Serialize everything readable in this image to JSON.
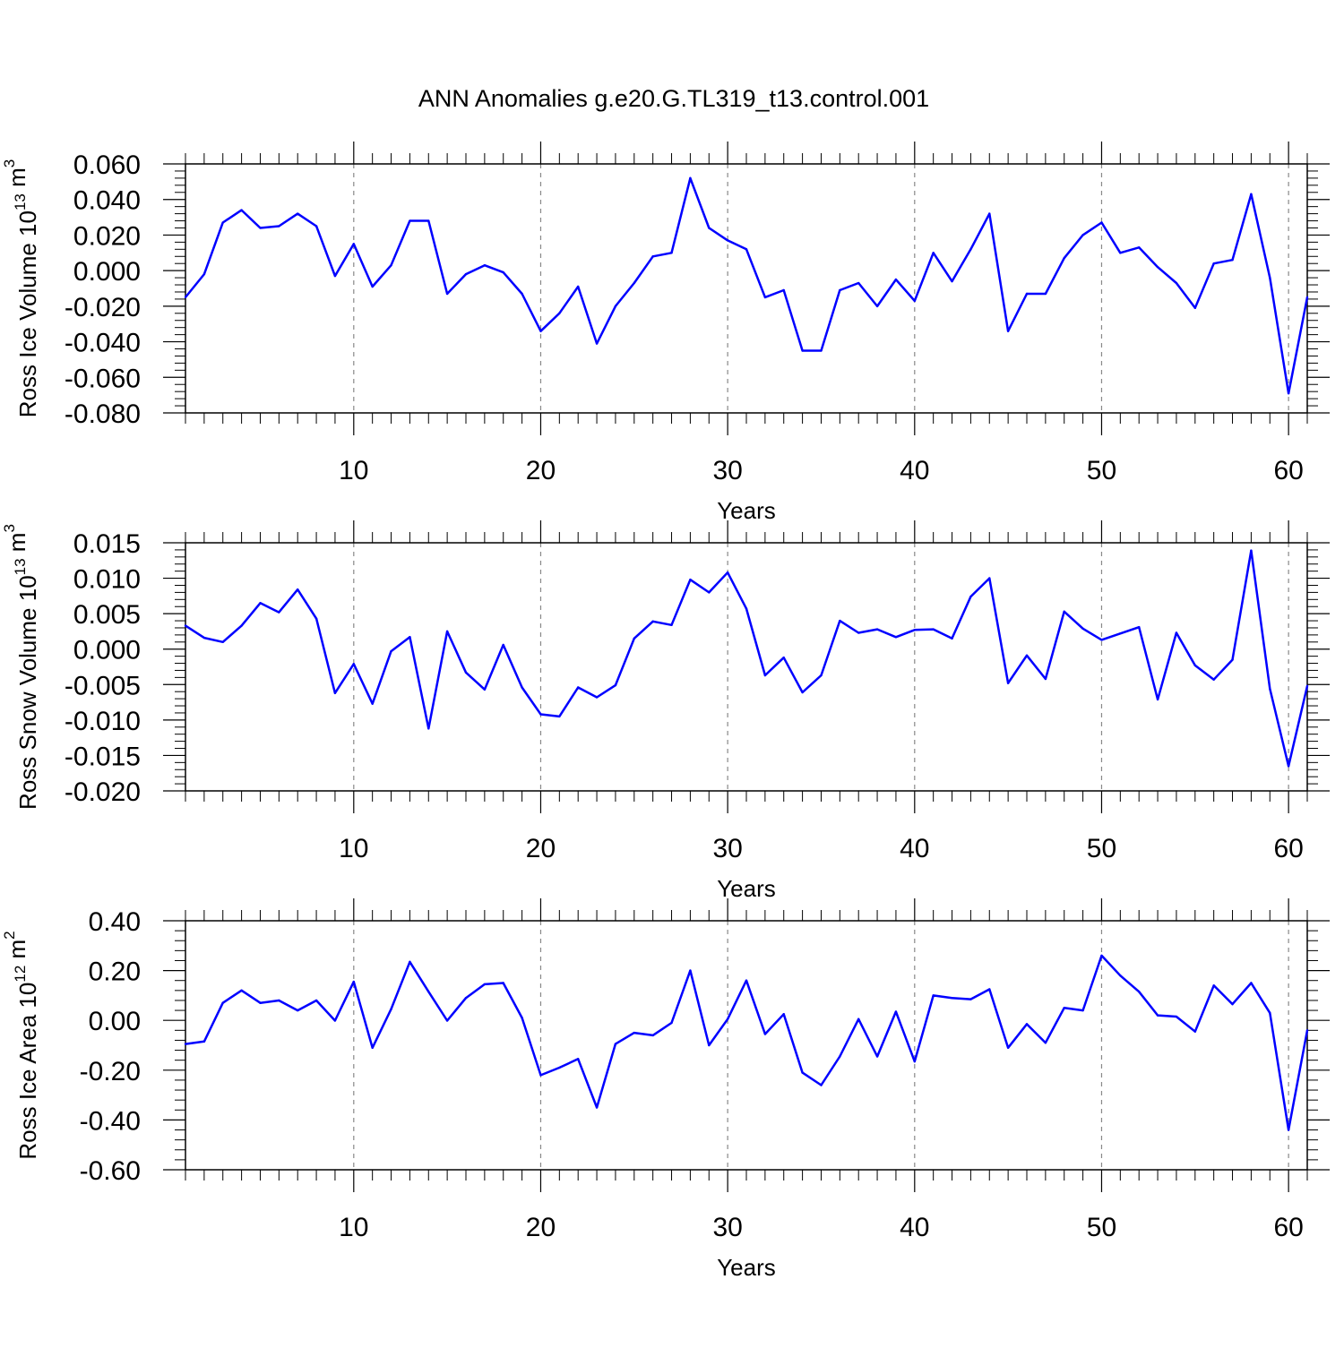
{
  "title": "ANN Anomalies g.e20.G.TL319_t13.control.001",
  "colors": {
    "line": "#0000ff",
    "axis": "#000000",
    "grid": "#888888"
  },
  "chart_data": [
    {
      "type": "line",
      "xlabel": "Years",
      "ylabel": {
        "text": "Ross Ice Volume 10",
        "sup": "13",
        "unit": " m",
        "unit_sup": "3"
      },
      "xlim": [
        1,
        61
      ],
      "ylim": [
        -0.08,
        0.06
      ],
      "x_ticks": [
        10,
        20,
        30,
        40,
        50,
        60
      ],
      "x_tick_labels": [
        "10",
        "20",
        "30",
        "40",
        "50",
        "60"
      ],
      "y_ticks": [
        -0.08,
        -0.06,
        -0.04,
        -0.02,
        0.0,
        0.02,
        0.04,
        0.06
      ],
      "y_tick_labels": [
        "-0.080",
        "-0.060",
        "-0.040",
        "-0.020",
        "0.000",
        "0.020",
        "0.040",
        "0.060"
      ],
      "x": [
        1,
        2,
        3,
        4,
        5,
        6,
        7,
        8,
        9,
        10,
        11,
        12,
        13,
        14,
        15,
        16,
        17,
        18,
        19,
        20,
        21,
        22,
        23,
        24,
        25,
        26,
        27,
        28,
        29,
        30,
        31,
        32,
        33,
        34,
        35,
        36,
        37,
        38,
        39,
        40,
        41,
        42,
        43,
        44,
        45,
        46,
        47,
        48,
        49,
        50,
        51,
        52,
        53,
        54,
        55,
        56,
        57,
        58,
        59,
        60,
        61
      ],
      "values": [
        -0.015,
        -0.002,
        0.027,
        0.034,
        0.024,
        0.025,
        0.032,
        0.025,
        -0.003,
        0.015,
        -0.009,
        0.003,
        0.028,
        0.028,
        -0.013,
        -0.002,
        0.003,
        -0.001,
        -0.013,
        -0.034,
        -0.024,
        -0.009,
        -0.041,
        -0.02,
        -0.007,
        0.008,
        0.01,
        0.052,
        0.024,
        0.017,
        0.012,
        -0.015,
        -0.011,
        -0.045,
        -0.045,
        -0.011,
        -0.007,
        -0.02,
        -0.005,
        -0.017,
        0.01,
        -0.006,
        0.012,
        0.032,
        -0.034,
        -0.013,
        -0.013,
        0.007,
        0.02,
        0.027,
        0.01,
        0.013,
        0.002,
        -0.007,
        -0.021,
        0.004,
        0.006,
        0.043,
        -0.004,
        -0.069,
        -0.015
      ]
    },
    {
      "type": "line",
      "xlabel": "Years",
      "ylabel": {
        "text": "Ross Snow Volume 10",
        "sup": "13",
        "unit": " m",
        "unit_sup": "3"
      },
      "xlim": [
        1,
        61
      ],
      "ylim": [
        -0.02,
        0.015
      ],
      "x_ticks": [
        10,
        20,
        30,
        40,
        50,
        60
      ],
      "x_tick_labels": [
        "10",
        "20",
        "30",
        "40",
        "50",
        "60"
      ],
      "y_ticks": [
        -0.02,
        -0.015,
        -0.01,
        -0.005,
        0.0,
        0.005,
        0.01,
        0.015
      ],
      "y_tick_labels": [
        "-0.020",
        "-0.015",
        "-0.010",
        "-0.005",
        "0.000",
        "0.005",
        "0.010",
        "0.015"
      ],
      "x": [
        1,
        2,
        3,
        4,
        5,
        6,
        7,
        8,
        9,
        10,
        11,
        12,
        13,
        14,
        15,
        16,
        17,
        18,
        19,
        20,
        21,
        22,
        23,
        24,
        25,
        26,
        27,
        28,
        29,
        30,
        31,
        32,
        33,
        34,
        35,
        36,
        37,
        38,
        39,
        40,
        41,
        42,
        43,
        44,
        45,
        46,
        47,
        48,
        49,
        50,
        51,
        52,
        53,
        54,
        55,
        56,
        57,
        58,
        59,
        60,
        61
      ],
      "values": [
        0.0033,
        0.0016,
        0.001,
        0.0033,
        0.0065,
        0.0052,
        0.0084,
        0.0043,
        -0.0062,
        -0.0021,
        -0.0077,
        -0.0003,
        0.0017,
        -0.0112,
        0.0025,
        -0.0033,
        -0.0057,
        0.0006,
        -0.0054,
        -0.0092,
        -0.0095,
        -0.0054,
        -0.0068,
        -0.0051,
        0.0015,
        0.0039,
        0.0034,
        0.0098,
        0.008,
        0.0108,
        0.0057,
        -0.0037,
        -0.0012,
        -0.0061,
        -0.0037,
        0.004,
        0.0023,
        0.0028,
        0.0017,
        0.0027,
        0.0028,
        0.0015,
        0.0074,
        0.01,
        -0.0048,
        -0.0009,
        -0.0042,
        0.0053,
        0.0029,
        0.0013,
        0.0022,
        0.0031,
        -0.0071,
        0.0023,
        -0.0023,
        -0.0043,
        -0.0015,
        0.0139,
        -0.0056,
        -0.0165,
        -0.0052
      ]
    },
    {
      "type": "line",
      "xlabel": "Years",
      "ylabel": {
        "text": "Ross Ice Area 10",
        "sup": "12",
        "unit": " m",
        "unit_sup": "2"
      },
      "xlim": [
        1,
        61
      ],
      "ylim": [
        -0.6,
        0.4
      ],
      "x_ticks": [
        10,
        20,
        30,
        40,
        50,
        60
      ],
      "x_tick_labels": [
        "10",
        "20",
        "30",
        "40",
        "50",
        "60"
      ],
      "y_ticks": [
        -0.6,
        -0.4,
        -0.2,
        0.0,
        0.2,
        0.4
      ],
      "y_tick_labels": [
        "-0.60",
        "-0.40",
        "-0.20",
        "0.00",
        "0.20",
        "0.40"
      ],
      "x": [
        1,
        2,
        3,
        4,
        5,
        6,
        7,
        8,
        9,
        10,
        11,
        12,
        13,
        14,
        15,
        16,
        17,
        18,
        19,
        20,
        21,
        22,
        23,
        24,
        25,
        26,
        27,
        28,
        29,
        30,
        31,
        32,
        33,
        34,
        35,
        36,
        37,
        38,
        39,
        40,
        41,
        42,
        43,
        44,
        45,
        46,
        47,
        48,
        49,
        50,
        51,
        52,
        53,
        54,
        55,
        56,
        57,
        58,
        59,
        60,
        61
      ],
      "values": [
        -0.095,
        -0.085,
        0.07,
        0.12,
        0.07,
        0.08,
        0.04,
        0.08,
        -0.001,
        0.155,
        -0.11,
        0.045,
        0.235,
        0.115,
        -0.001,
        0.09,
        0.145,
        0.15,
        0.01,
        -0.22,
        -0.19,
        -0.155,
        -0.35,
        -0.095,
        -0.05,
        -0.06,
        -0.01,
        0.2,
        -0.1,
        0.005,
        0.16,
        -0.055,
        0.025,
        -0.21,
        -0.26,
        -0.145,
        0.005,
        -0.145,
        0.035,
        -0.165,
        0.1,
        0.09,
        0.085,
        0.125,
        -0.11,
        -0.015,
        -0.09,
        0.05,
        0.04,
        0.26,
        0.18,
        0.115,
        0.02,
        0.015,
        -0.045,
        0.14,
        0.065,
        0.15,
        0.03,
        -0.44,
        -0.04
      ]
    }
  ]
}
